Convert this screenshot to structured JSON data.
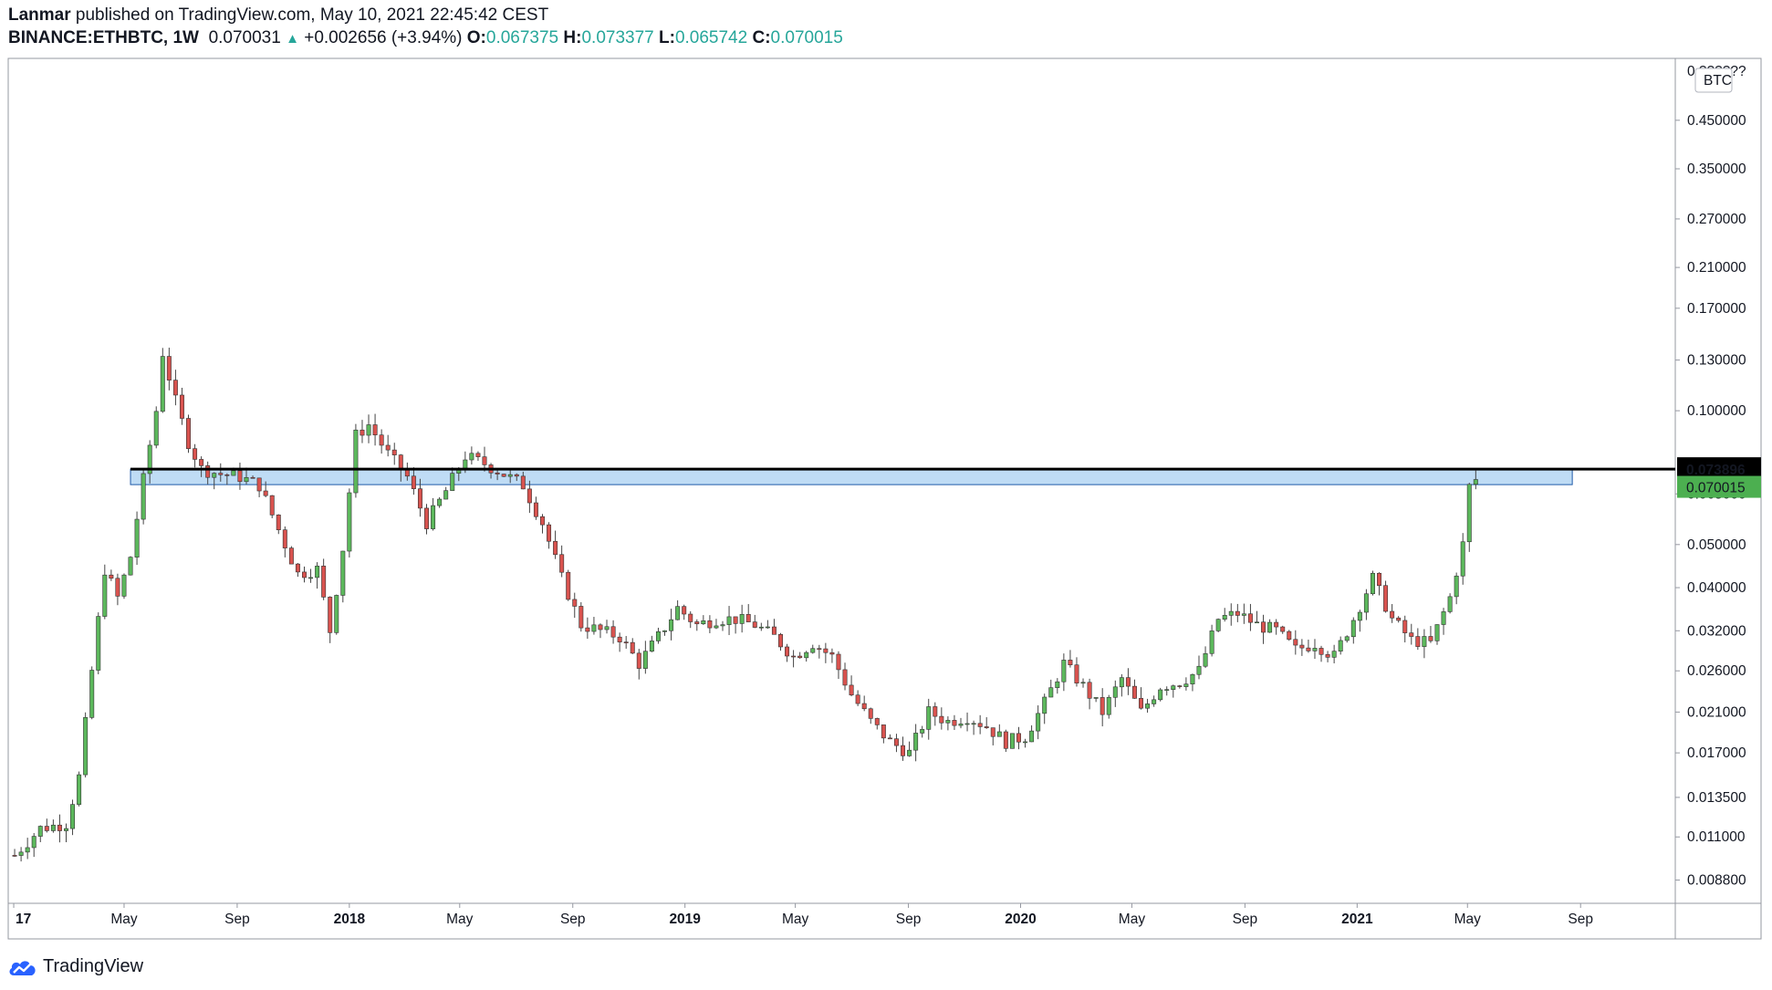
{
  "header": {
    "author": "Lanmar",
    "published_text": " published on TradingView.com, May 10, 2021 22:45:42 CEST",
    "symbol": "BINANCE:ETHBTC, 1W",
    "last": "0.070031",
    "arrow": "▲",
    "change": "+0.002656 (+3.94%)",
    "o_label": "O:",
    "o_value": "0.067375",
    "h_label": "H:",
    "h_value": "0.073377",
    "l_label": "L:",
    "l_value": "0.065742",
    "c_label": "C:",
    "c_value": "0.070015"
  },
  "footer": {
    "brand": "TradingView"
  },
  "colors": {
    "up": "#26a69a",
    "up_body": "#5cb85c",
    "down": "#d9534f",
    "zone": "#bfdcf5",
    "zone_border": "#1e5aa8",
    "line": "#000000",
    "price_badge": "#4caf50"
  },
  "chart_data": {
    "type": "candlestick",
    "scale": "log",
    "currency_label": "BTC",
    "y_ticks": [
      "0.450000",
      "0.350000",
      "0.270000",
      "0.210000",
      "0.170000",
      "0.130000",
      "0.100000",
      "0.065000",
      "0.050000",
      "0.040000",
      "0.032000",
      "0.026000",
      "0.021000",
      "0.017000",
      "0.013500",
      "0.011000",
      "0.008800"
    ],
    "y_top_tick": "0.??????",
    "x_ticks": [
      "17",
      "May",
      "Sep",
      "2018",
      "May",
      "Sep",
      "2019",
      "May",
      "Sep",
      "2020",
      "May",
      "Sep",
      "2021",
      "May",
      "Sep"
    ],
    "x_tick_bold": [
      true,
      false,
      false,
      true,
      false,
      false,
      true,
      false,
      false,
      true,
      false,
      false,
      true,
      false,
      false
    ],
    "x_tick_dates": [
      "2017-01-01",
      "2017-05-01",
      "2017-09-01",
      "2018-01-01",
      "2018-05-01",
      "2018-09-01",
      "2019-01-01",
      "2019-05-01",
      "2019-09-01",
      "2020-01-01",
      "2020-05-01",
      "2020-09-01",
      "2021-01-01",
      "2021-05-01",
      "2021-09-01"
    ],
    "y_range": [
      0.0078,
      0.62
    ],
    "resistance_line": {
      "value": 0.073896,
      "label": "0.073896"
    },
    "zone": {
      "low": 0.0682,
      "high": 0.0739,
      "from": "2017-05-08",
      "to": "2021-08-23"
    },
    "last_price": {
      "value": 0.070015,
      "label": "0.070015"
    },
    "close_path": [
      [
        "2017-01-02",
        0.01
      ],
      [
        "2017-01-30",
        0.0115
      ],
      [
        "2017-02-27",
        0.0118
      ],
      [
        "2017-03-13",
        0.015
      ],
      [
        "2017-03-27",
        0.026
      ],
      [
        "2017-04-10",
        0.044
      ],
      [
        "2017-04-24",
        0.038
      ],
      [
        "2017-05-08",
        0.047
      ],
      [
        "2017-05-22",
        0.07
      ],
      [
        "2017-06-05",
        0.1
      ],
      [
        "2017-06-12",
        0.135
      ],
      [
        "2017-06-26",
        0.105
      ],
      [
        "2017-07-10",
        0.085
      ],
      [
        "2017-07-24",
        0.074
      ],
      [
        "2017-08-14",
        0.072
      ],
      [
        "2017-09-04",
        0.071
      ],
      [
        "2017-09-25",
        0.068
      ],
      [
        "2017-10-16",
        0.054
      ],
      [
        "2017-11-06",
        0.043
      ],
      [
        "2017-11-27",
        0.044
      ],
      [
        "2017-12-11",
        0.032
      ],
      [
        "2017-12-25",
        0.049
      ],
      [
        "2018-01-08",
        0.088
      ],
      [
        "2018-01-22",
        0.093
      ],
      [
        "2018-02-12",
        0.08
      ],
      [
        "2018-03-05",
        0.071
      ],
      [
        "2018-03-26",
        0.056
      ],
      [
        "2018-04-16",
        0.066
      ],
      [
        "2018-05-07",
        0.079
      ],
      [
        "2018-05-28",
        0.076
      ],
      [
        "2018-06-18",
        0.072
      ],
      [
        "2018-07-09",
        0.068
      ],
      [
        "2018-07-30",
        0.056
      ],
      [
        "2018-08-20",
        0.042
      ],
      [
        "2018-09-10",
        0.033
      ],
      [
        "2018-10-01",
        0.032
      ],
      [
        "2018-10-22",
        0.031
      ],
      [
        "2018-11-12",
        0.027
      ],
      [
        "2018-12-03",
        0.031
      ],
      [
        "2018-12-24",
        0.036
      ],
      [
        "2019-01-14",
        0.033
      ],
      [
        "2019-02-04",
        0.034
      ],
      [
        "2019-02-25",
        0.034
      ],
      [
        "2019-03-18",
        0.033
      ],
      [
        "2019-04-08",
        0.031
      ],
      [
        "2019-04-29",
        0.028
      ],
      [
        "2019-05-20",
        0.03
      ],
      [
        "2019-06-10",
        0.028
      ],
      [
        "2019-07-01",
        0.023
      ],
      [
        "2019-07-22",
        0.02
      ],
      [
        "2019-08-12",
        0.018
      ],
      [
        "2019-09-02",
        0.017
      ],
      [
        "2019-09-23",
        0.021
      ],
      [
        "2019-10-14",
        0.02
      ],
      [
        "2019-11-04",
        0.0205
      ],
      [
        "2019-11-25",
        0.0195
      ],
      [
        "2019-12-16",
        0.018
      ],
      [
        "2020-01-06",
        0.0185
      ],
      [
        "2020-01-27",
        0.022
      ],
      [
        "2020-02-17",
        0.027
      ],
      [
        "2020-03-09",
        0.024
      ],
      [
        "2020-03-30",
        0.021
      ],
      [
        "2020-04-20",
        0.025
      ],
      [
        "2020-05-11",
        0.021
      ],
      [
        "2020-06-01",
        0.024
      ],
      [
        "2020-06-22",
        0.0245
      ],
      [
        "2020-07-13",
        0.026
      ],
      [
        "2020-08-03",
        0.034
      ],
      [
        "2020-08-24",
        0.035
      ],
      [
        "2020-09-14",
        0.033
      ],
      [
        "2020-10-05",
        0.032
      ],
      [
        "2020-10-26",
        0.029
      ],
      [
        "2020-11-16",
        0.03
      ],
      [
        "2020-12-07",
        0.028
      ],
      [
        "2020-12-28",
        0.034
      ],
      [
        "2021-01-18",
        0.042
      ],
      [
        "2021-02-08",
        0.034
      ],
      [
        "2021-03-01",
        0.0305
      ],
      [
        "2021-03-22",
        0.03
      ],
      [
        "2021-04-12",
        0.038
      ],
      [
        "2021-04-26",
        0.05
      ],
      [
        "2021-05-03",
        0.0674
      ],
      [
        "2021-05-10",
        0.07
      ]
    ]
  }
}
